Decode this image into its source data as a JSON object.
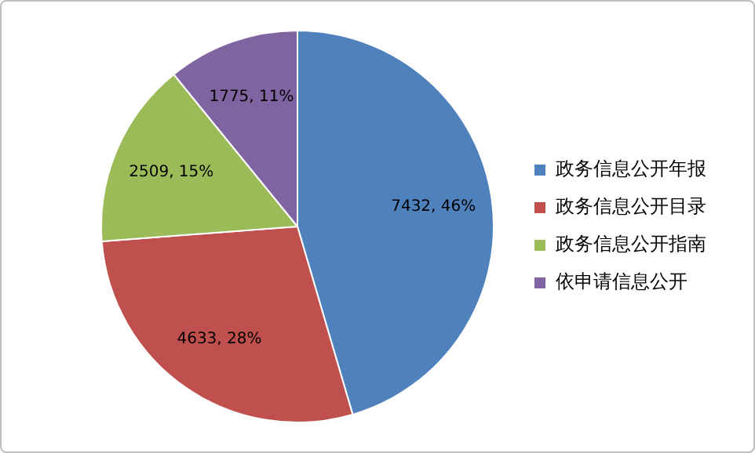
{
  "chart_data": {
    "type": "pie",
    "categories": [
      "政务信息公开年报",
      "政务信息公开目录",
      "政务信息公开指南",
      "依申请信息公开"
    ],
    "values": [
      7432,
      4633,
      2509,
      1775
    ],
    "colors": [
      "#4f81bd",
      "#c0504d",
      "#9bbb59",
      "#8064a2"
    ],
    "value_labels": [
      "7432, 46%",
      "4633, 28%",
      "2509, 15%",
      "1775, 11%"
    ],
    "legend": "right"
  }
}
